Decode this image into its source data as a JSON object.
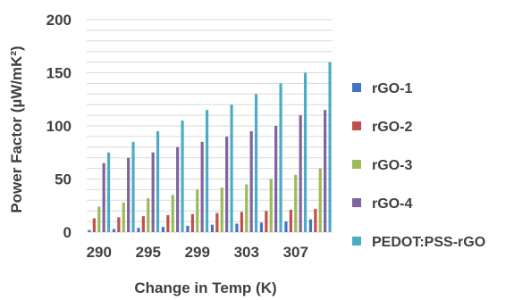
{
  "chart_data": {
    "type": "bar",
    "title": "",
    "xlabel": "Change in Temp (K)",
    "ylabel": "Power Factor (µW/mK²)",
    "ylim": [
      0,
      200
    ],
    "yticks": [
      0,
      50,
      100,
      150,
      200
    ],
    "grid": true,
    "legend_position": "right",
    "categories": [
      "290",
      "",
      "295",
      "",
      "299",
      "",
      "303",
      "",
      "307",
      ""
    ],
    "series": [
      {
        "name": "rGO-1",
        "color": "#4472c4",
        "values": [
          2,
          3,
          4,
          5,
          6,
          7,
          8,
          9,
          10,
          12
        ]
      },
      {
        "name": "rGO-2",
        "color": "#c0504d",
        "values": [
          13,
          14,
          15,
          16,
          17,
          18,
          19,
          20,
          21,
          22
        ]
      },
      {
        "name": "rGO-3",
        "color": "#9bbb59",
        "values": [
          24,
          28,
          32,
          35,
          40,
          42,
          45,
          50,
          54,
          60
        ]
      },
      {
        "name": "rGO-4",
        "color": "#8064a2",
        "values": [
          65,
          70,
          75,
          80,
          85,
          90,
          95,
          100,
          110,
          115
        ]
      },
      {
        "name": "PEDOT:PSS-rGO",
        "color": "#4bacc6",
        "values": [
          75,
          85,
          95,
          105,
          115,
          120,
          130,
          140,
          150,
          160
        ]
      }
    ]
  }
}
